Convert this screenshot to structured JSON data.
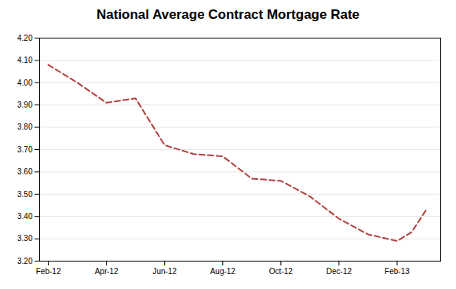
{
  "chart_data": {
    "type": "line",
    "title": "National Average Contract Mortgage Rate",
    "x": [
      0,
      1,
      2,
      3,
      4,
      5,
      6,
      7,
      8,
      9,
      10,
      11,
      12,
      12.5,
      13
    ],
    "values": [
      4.08,
      4.0,
      3.91,
      3.93,
      3.72,
      3.68,
      3.67,
      3.57,
      3.56,
      3.49,
      3.39,
      3.32,
      3.29,
      3.33,
      3.43
    ],
    "color": "#B04040",
    "line_style": "dashed",
    "xlim": [
      -0.3,
      13.5
    ],
    "xticks": [
      {
        "value": 0,
        "label": "Feb-12"
      },
      {
        "value": 2,
        "label": "Apr-12"
      },
      {
        "value": 4,
        "label": "Jun-12"
      },
      {
        "value": 6,
        "label": "Aug-12"
      },
      {
        "value": 8,
        "label": "Oct-12"
      },
      {
        "value": 10,
        "label": "Dec-12"
      },
      {
        "value": 12,
        "label": "Feb-13"
      }
    ],
    "ylim": [
      3.2,
      4.2
    ],
    "yticks": [
      {
        "value": 3.2,
        "label": "3.20"
      },
      {
        "value": 3.3,
        "label": "3.30"
      },
      {
        "value": 3.4,
        "label": "3.40"
      },
      {
        "value": 3.5,
        "label": "3.50"
      },
      {
        "value": 3.6,
        "label": "3.60"
      },
      {
        "value": 3.7,
        "label": "3.70"
      },
      {
        "value": 3.8,
        "label": "3.80"
      },
      {
        "value": 3.9,
        "label": "3.90"
      },
      {
        "value": 4,
        "label": "4.00"
      },
      {
        "value": 4.1,
        "label": "4.10"
      },
      {
        "value": 4.2,
        "label": "4.20"
      }
    ],
    "grid": "y"
  }
}
